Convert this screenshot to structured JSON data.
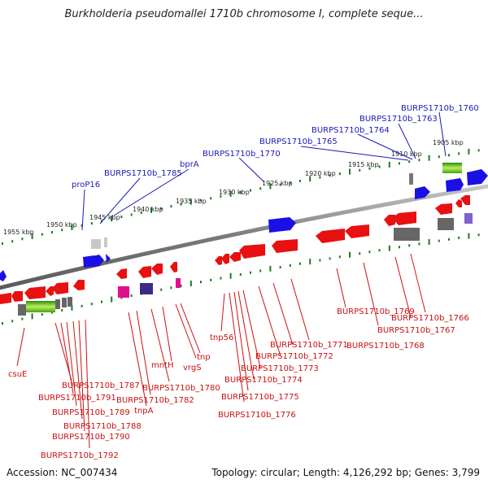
{
  "title": "Burkholderia pseudomallei 1710b chromosome I, complete seque...",
  "footer": {
    "accession": "Accession: NC_007434",
    "topology": "Topology: circular; Length: 4,126,292 bp; Genes: 3,799"
  },
  "colors": {
    "forward_gene": "#1a10e6",
    "reverse_gene": "#e81010",
    "pseudo_gene": "#666666",
    "rna_gene": "#7ad000",
    "other_gene": "#e0108a",
    "label_top": "#1a1ab8",
    "label_bottom": "#c81010",
    "tick": "#1f7a1f",
    "backbone": "#8a8a8a"
  },
  "kbp_labels": [
    "1905 kbp",
    "1910 kbp",
    "1915 kbp",
    "1920 kbp",
    "1925 kbp",
    "1930 kbp",
    "1935 kbp",
    "1940 kbp",
    "1945 kbp",
    "1950 kbp",
    "1955 kbp"
  ],
  "top_labels": [
    "BURPS1710b_1760",
    "BURPS1710b_1763",
    "BURPS1710b_1764",
    "BURPS1710b_1765",
    "BURPS1710b_1770",
    "bprA",
    "BURPS1710b_1785",
    "proP16"
  ],
  "bottom_labels": [
    "csuE",
    "BURPS1710b_1787",
    "BURPS1710b_1791",
    "BURPS1710b_1789",
    "BURPS1710b_1788",
    "BURPS1710b_1790",
    "BURPS1710b_1792",
    "tnpA",
    "BURPS1710b_1782",
    "BURPS1710b_1780",
    "mntH",
    "vrgS",
    "tnp",
    "tnp56",
    "BURPS1710b_1771",
    "BURPS1710b_1772",
    "BURPS1710b_1773",
    "BURPS1710b_1774",
    "BURPS1710b_1775",
    "BURPS1710b_1776",
    "BURPS1710b_1769",
    "BURPS1710b_1768",
    "BURPS1710b_1767",
    "BURPS1710b_1766"
  ]
}
